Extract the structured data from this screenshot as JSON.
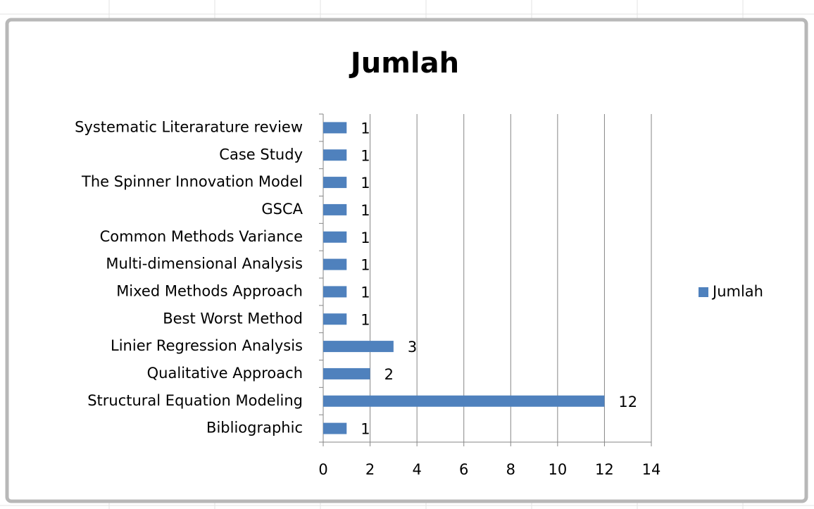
{
  "chart_data": {
    "type": "bar",
    "orientation": "horizontal",
    "title": "Jumlah",
    "categories": [
      "Bibliographic",
      "Structural Equation Modeling",
      "Qualitative Approach",
      "Linier Regression Analysis",
      "Best Worst Method",
      "Mixed Methods Approach",
      "Multi-dimensional Analysis",
      "Common Methods Variance",
      "GSCA",
      "The Spinner Innovation Model",
      "Case Study",
      "Systematic Literarature review"
    ],
    "series": [
      {
        "name": "Jumlah",
        "color": "#4f81bd",
        "values": [
          1,
          12,
          2,
          3,
          1,
          1,
          1,
          1,
          1,
          1,
          1,
          1
        ]
      }
    ],
    "xlim": [
      0,
      14
    ],
    "xticks": [
      0,
      2,
      4,
      6,
      8,
      10,
      12,
      14
    ],
    "grid": true,
    "legend": "right"
  }
}
